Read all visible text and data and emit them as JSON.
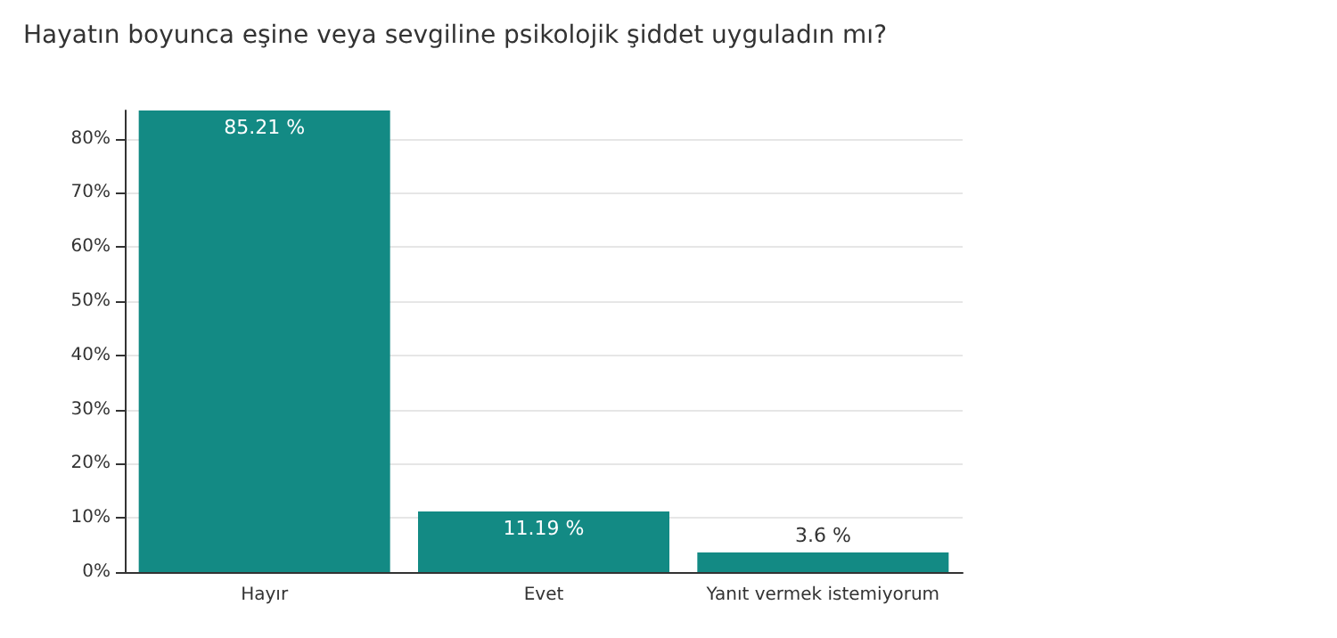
{
  "chart_data": {
    "type": "bar",
    "title": "Hayatın boyunca eşine veya sevgiline psikolojik şiddet uyguladın mı?",
    "categories": [
      "Hayır",
      "Evet",
      "Yanıt vermek istemiyorum"
    ],
    "values": [
      85.21,
      11.19,
      3.6
    ],
    "value_labels": [
      "85.21 %",
      "11.19 %",
      "3.6 %"
    ],
    "color": "#138a84",
    "ylim": [
      0,
      85.21
    ],
    "yticks": [
      {
        "value": 0,
        "label": "0%"
      },
      {
        "value": 10,
        "label": "10%"
      },
      {
        "value": 20,
        "label": "20%"
      },
      {
        "value": 30,
        "label": "30%"
      },
      {
        "value": 40,
        "label": "40%"
      },
      {
        "value": 50,
        "label": "50%"
      },
      {
        "value": 60,
        "label": "60%"
      },
      {
        "value": 70,
        "label": "70%"
      },
      {
        "value": 80,
        "label": "80%"
      }
    ],
    "grid": "y"
  }
}
